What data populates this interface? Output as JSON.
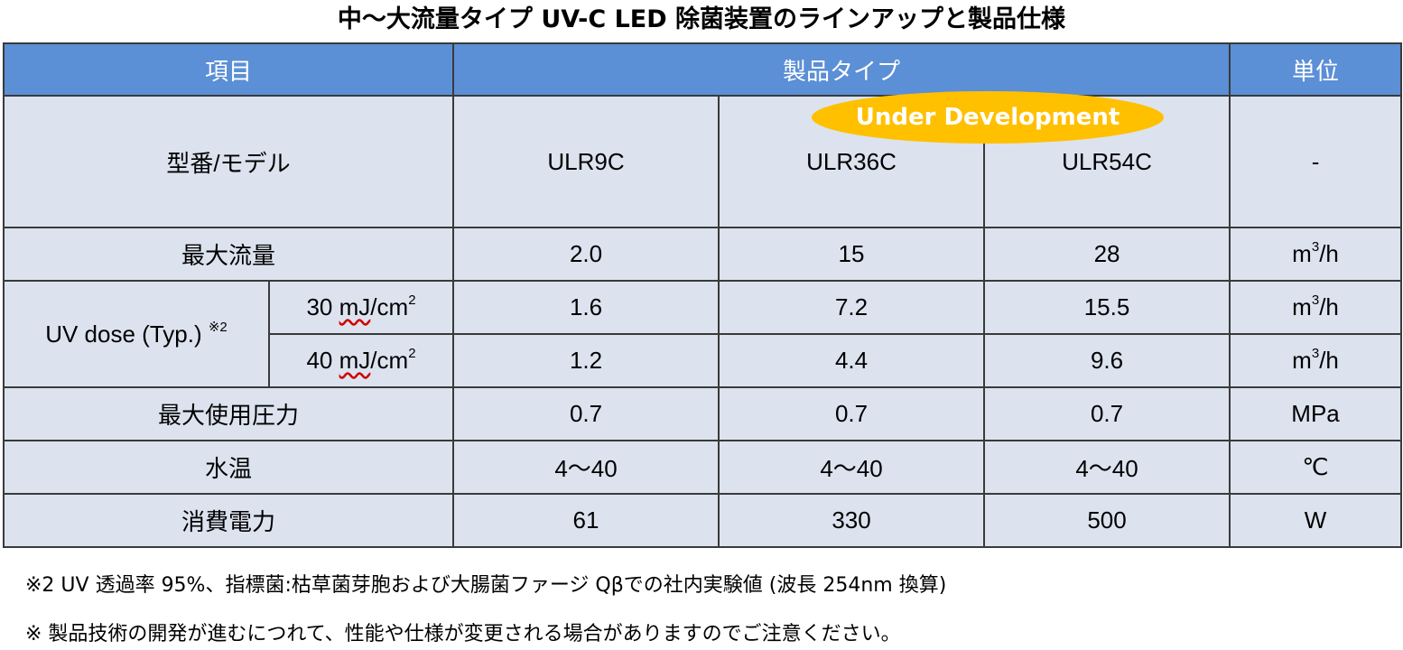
{
  "title": "中～大流量タイプ UV-C LED 除菌装置のラインアップと製品仕様",
  "header": {
    "item": "項目",
    "product_type": "製品タイプ",
    "unit": "単位"
  },
  "badge": "Under Development",
  "model_row": {
    "label": "型番/モデル",
    "values": [
      "ULR9C",
      "ULR36C",
      "ULR54C"
    ],
    "unit": "-"
  },
  "max_flow": {
    "label": "最大流量",
    "values": [
      "2.0",
      "15",
      "28"
    ],
    "unit_base": "m",
    "unit_sup": "3",
    "unit_tail": "/h"
  },
  "uv_dose": {
    "label": "UV dose (Typ.)",
    "note_mark": "※2",
    "rows": [
      {
        "sub_num": "30 ",
        "sub_unit": "mJ",
        "sub_tail": "/cm",
        "sub_sup": "2",
        "values": [
          "1.6",
          "7.2",
          "15.5"
        ],
        "unit_base": "m",
        "unit_sup": "3",
        "unit_tail": "/h"
      },
      {
        "sub_num": "40 ",
        "sub_unit": "mJ",
        "sub_tail": "/cm",
        "sub_sup": "2",
        "values": [
          "1.2",
          "4.4",
          "9.6"
        ],
        "unit_base": "m",
        "unit_sup": "3",
        "unit_tail": "/h"
      }
    ]
  },
  "max_pressure": {
    "label": "最大使用圧力",
    "values": [
      "0.7",
      "0.7",
      "0.7"
    ],
    "unit": "MPa"
  },
  "water_temp": {
    "label": "水温",
    "values": [
      "4～40",
      "4～40",
      "4～40"
    ],
    "unit": "℃"
  },
  "power": {
    "label": "消費電力",
    "values": [
      "61",
      "330",
      "500"
    ],
    "unit": "W"
  },
  "notes": [
    "※2 UV 透過率 95%、指標菌:枯草菌芽胞および大腸菌ファージ Qβでの社内実験値  (波長 254nm 換算)",
    "※  製品技術の開発が進むにつれて、性能や仕様が変更される場合がありますのでご注意ください。"
  ],
  "colors": {
    "header_bg": "#5b8fd6",
    "cell_bg": "#dce3ef",
    "badge_bg": "#ffc000"
  }
}
